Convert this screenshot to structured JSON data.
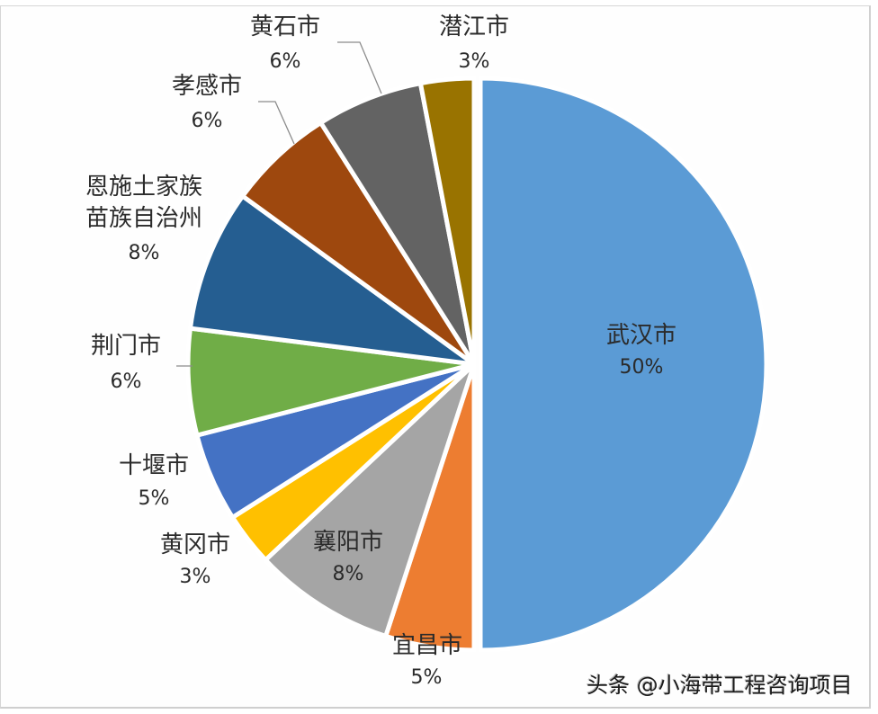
{
  "chart_data": {
    "type": "pie",
    "title": "",
    "start_angle_deg": 0,
    "direction": "clockwise",
    "exploded": [
      "武汉市"
    ],
    "categories": [
      "武汉市",
      "宜昌市",
      "襄阳市",
      "黄冈市",
      "十堰市",
      "荆门市",
      "恩施土家族苗族自治州",
      "孝感市",
      "黄石市",
      "潜江市"
    ],
    "values": [
      50,
      5,
      8,
      3,
      5,
      6,
      8,
      6,
      6,
      3
    ],
    "labels": [
      "50%",
      "5%",
      "8%",
      "3%",
      "5%",
      "6%",
      "8%",
      "6%",
      "6%",
      "3%"
    ],
    "colors": [
      "#5B9BD5",
      "#ED7D31",
      "#A5A5A5",
      "#FFC000",
      "#4472C4",
      "#70AD47",
      "#255E91",
      "#9E480E",
      "#636363",
      "#997300"
    ],
    "legend": "none (data labels with category name and percentage)"
  },
  "slices": [
    {
      "name": "武汉市",
      "pct": "50%",
      "color": "#5B9BD5"
    },
    {
      "name": "宜昌市",
      "pct": "5%",
      "color": "#ED7D31"
    },
    {
      "name": "襄阳市",
      "pct": "8%",
      "color": "#A5A5A5"
    },
    {
      "name": "黄冈市",
      "pct": "3%",
      "color": "#FFC000"
    },
    {
      "name": "十堰市",
      "pct": "5%",
      "color": "#4472C4"
    },
    {
      "name": "荆门市",
      "pct": "6%",
      "color": "#70AD47"
    },
    {
      "name_line1": "恩施土家族",
      "name_line2": "苗族自治州",
      "pct": "8%",
      "color": "#255E91"
    },
    {
      "name": "孝感市",
      "pct": "6%",
      "color": "#9E480E"
    },
    {
      "name": "黄石市",
      "pct": "6%",
      "color": "#636363"
    },
    {
      "name": "潜江市",
      "pct": "3%",
      "color": "#997300"
    }
  ],
  "watermark": "头条 @小海带工程咨询项目"
}
